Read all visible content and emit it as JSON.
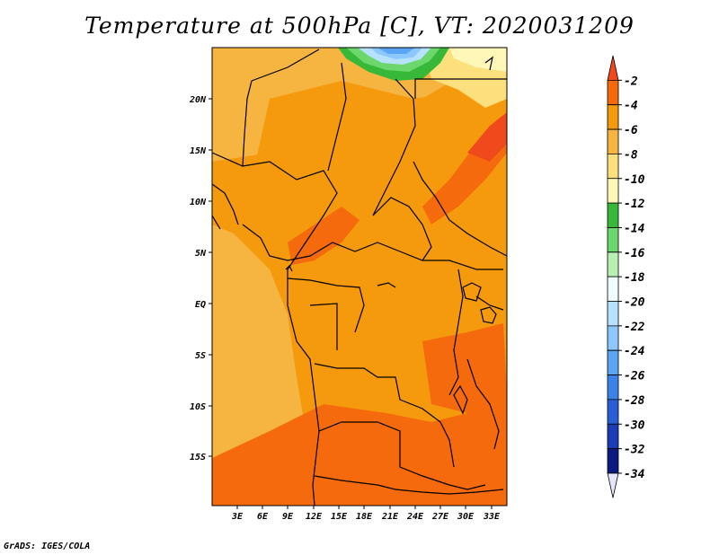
{
  "title": "Temperature at 500hPa [C], VT: 2020031209",
  "credit": "GrADS: IGES/COLA",
  "map": {
    "lat_labels": [
      "20N",
      "15N",
      "10N",
      "5N",
      "EQ",
      "5S",
      "10S",
      "15S"
    ],
    "lon_labels": [
      "3E",
      "6E",
      "9E",
      "12E",
      "15E",
      "18E",
      "21E",
      "24E",
      "27E",
      "30E",
      "33E"
    ]
  },
  "colorbar": {
    "labels": [
      "-2",
      "-4",
      "-6",
      "-8",
      "-10",
      "-12",
      "-14",
      "-16",
      "-18",
      "-20",
      "-22",
      "-24",
      "-26",
      "-28",
      "-30",
      "-32",
      "-34"
    ],
    "colors": [
      "#f04a1c",
      "#f56a0c",
      "#f59a0c",
      "#f6b440",
      "#fbe07d",
      "#fff7b8",
      "#38b838",
      "#6cd76c",
      "#b7f0b0",
      "#eefcff",
      "#b6e2ff",
      "#8cc8ff",
      "#5aa6f5",
      "#3c82e6",
      "#2a5ed6",
      "#1a3cb6",
      "#0a1a7e",
      "#e6e6fa"
    ]
  },
  "palette": {
    "ocean": "#f6b440",
    "land": "#f59a0c",
    "warm": "#f56a0c",
    "hot": "#f04a1c",
    "cool": "#fbe07d"
  }
}
